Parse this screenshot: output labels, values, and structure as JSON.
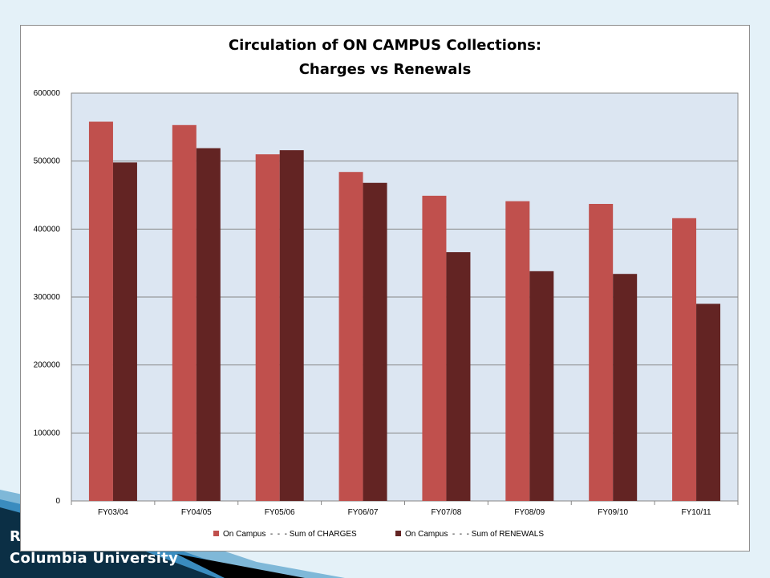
{
  "slide": {
    "footer_line1": "R",
    "footer_line2": "Columbia University",
    "colors": {
      "background": "#e4f1f8",
      "wave_dark": "#0b2f45",
      "wave_blue": "#3a8cbf"
    }
  },
  "chart_data": {
    "type": "bar",
    "title": "Circulation of ON CAMPUS Collections:",
    "subtitle": "Charges vs Renewals",
    "categories": [
      "FY03/04",
      "FY04/05",
      "FY05/06",
      "FY06/07",
      "FY07/08",
      "FY08/09",
      "FY09/10",
      "FY10/11"
    ],
    "series": [
      {
        "name": "On Campus  -  -  - Sum of CHARGES",
        "color": "#c0504d",
        "values": [
          558000,
          553000,
          510000,
          484000,
          449000,
          441000,
          437000,
          416000
        ]
      },
      {
        "name": "On Campus  -  -  - Sum of RENEWALS",
        "color": "#632423",
        "values": [
          498000,
          519000,
          516000,
          468000,
          366000,
          338000,
          334000,
          290000
        ]
      }
    ],
    "ylim": [
      0,
      600000
    ],
    "yticks": [
      "0",
      "100000",
      "200000",
      "300000",
      "400000",
      "500000",
      "600000"
    ],
    "grid": true,
    "legend_position": "bottom",
    "plot_background": "#dce6f2"
  }
}
